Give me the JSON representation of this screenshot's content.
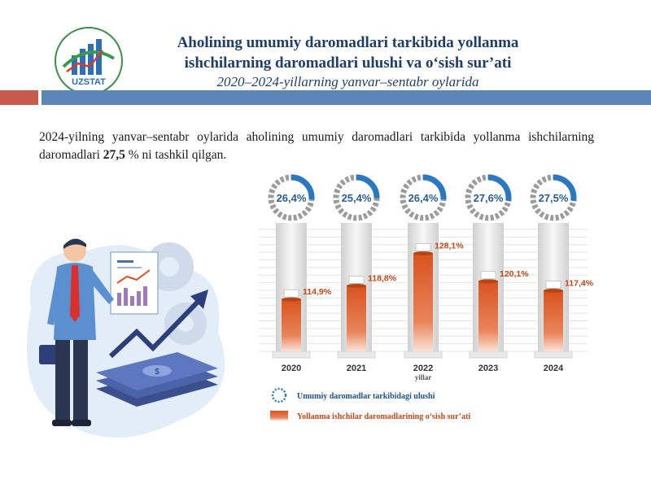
{
  "logo": {
    "text": "UZSTAT"
  },
  "header": {
    "title_line1": "Aholining umumiy daromadlari  tarkibida yollanma",
    "title_line2": "ishchilarning daromadlari  ulushi va o‘sish sur’ati",
    "subtitle": "2020–2024-yillarning yanvar–sentabr oylarida"
  },
  "paragraph": {
    "before": "2024-yilning yanvar–sentabr oylarida aholining umumiy daromadlari tarkibida yollanma ishchilarning daromadlari ",
    "highlight": "27,5",
    "after": " % ni tashkil qilgan."
  },
  "colors": {
    "title": "#1f3e66",
    "share_ring": "#2b78c2",
    "growth_bar": "#d9531e",
    "band_red": "#c65a4c",
    "band_blue": "#5b86b8"
  },
  "chart_data": {
    "type": "bar",
    "categories": [
      "2020",
      "2021",
      "2022",
      "2023",
      "2024"
    ],
    "xlabel": "yillar",
    "series": [
      {
        "name": "Umumiy  daromadlar  tarkibidagi  ulushi",
        "unit": "%",
        "values": [
          26.4,
          25.4,
          26.4,
          27.6,
          27.5
        ],
        "labels": [
          "26,4%",
          "25,4%",
          "26,4%",
          "27,6%",
          "27,5%"
        ]
      },
      {
        "name": "Yollanma  ishchilar daromadlarining  o‘sish sur’ati",
        "unit": "%",
        "values": [
          114.9,
          118.8,
          128.1,
          120.1,
          117.4
        ],
        "labels": [
          "114,9%",
          "118,8%",
          "128,1%",
          "120,1%",
          "117,4%"
        ]
      }
    ],
    "grid": true,
    "legend": "bottom"
  }
}
